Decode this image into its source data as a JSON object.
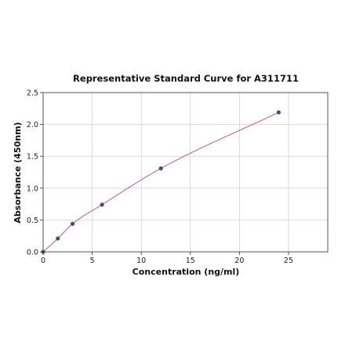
{
  "chart_data": {
    "type": "scatter",
    "title": "Representative Standard Curve for A311711",
    "xlabel": "Concentration (ng/ml)",
    "ylabel": "Absorbance (450nm)",
    "xlim": [
      0,
      29
    ],
    "ylim": [
      0,
      2.5
    ],
    "x_ticks": [
      0,
      5,
      10,
      15,
      20,
      25
    ],
    "y_ticks": [
      0.0,
      0.5,
      1.0,
      1.5,
      2.0,
      2.5
    ],
    "x_tick_labels": [
      "0",
      "5",
      "10",
      "15",
      "20",
      "25"
    ],
    "y_tick_labels": [
      "0.0",
      "0.5",
      "1.0",
      "1.5",
      "2.0",
      "2.5"
    ],
    "grid": true,
    "series": [
      {
        "x": [
          0,
          1.5,
          3,
          6,
          12,
          24
        ],
        "y": [
          0.0,
          0.21,
          0.44,
          0.74,
          1.31,
          2.19
        ]
      }
    ],
    "fit_curve": {
      "type": "smooth",
      "x_range": [
        0,
        24
      ]
    },
    "colors": {
      "point": "#4a4a7a",
      "curve": "#c06070"
    }
  }
}
